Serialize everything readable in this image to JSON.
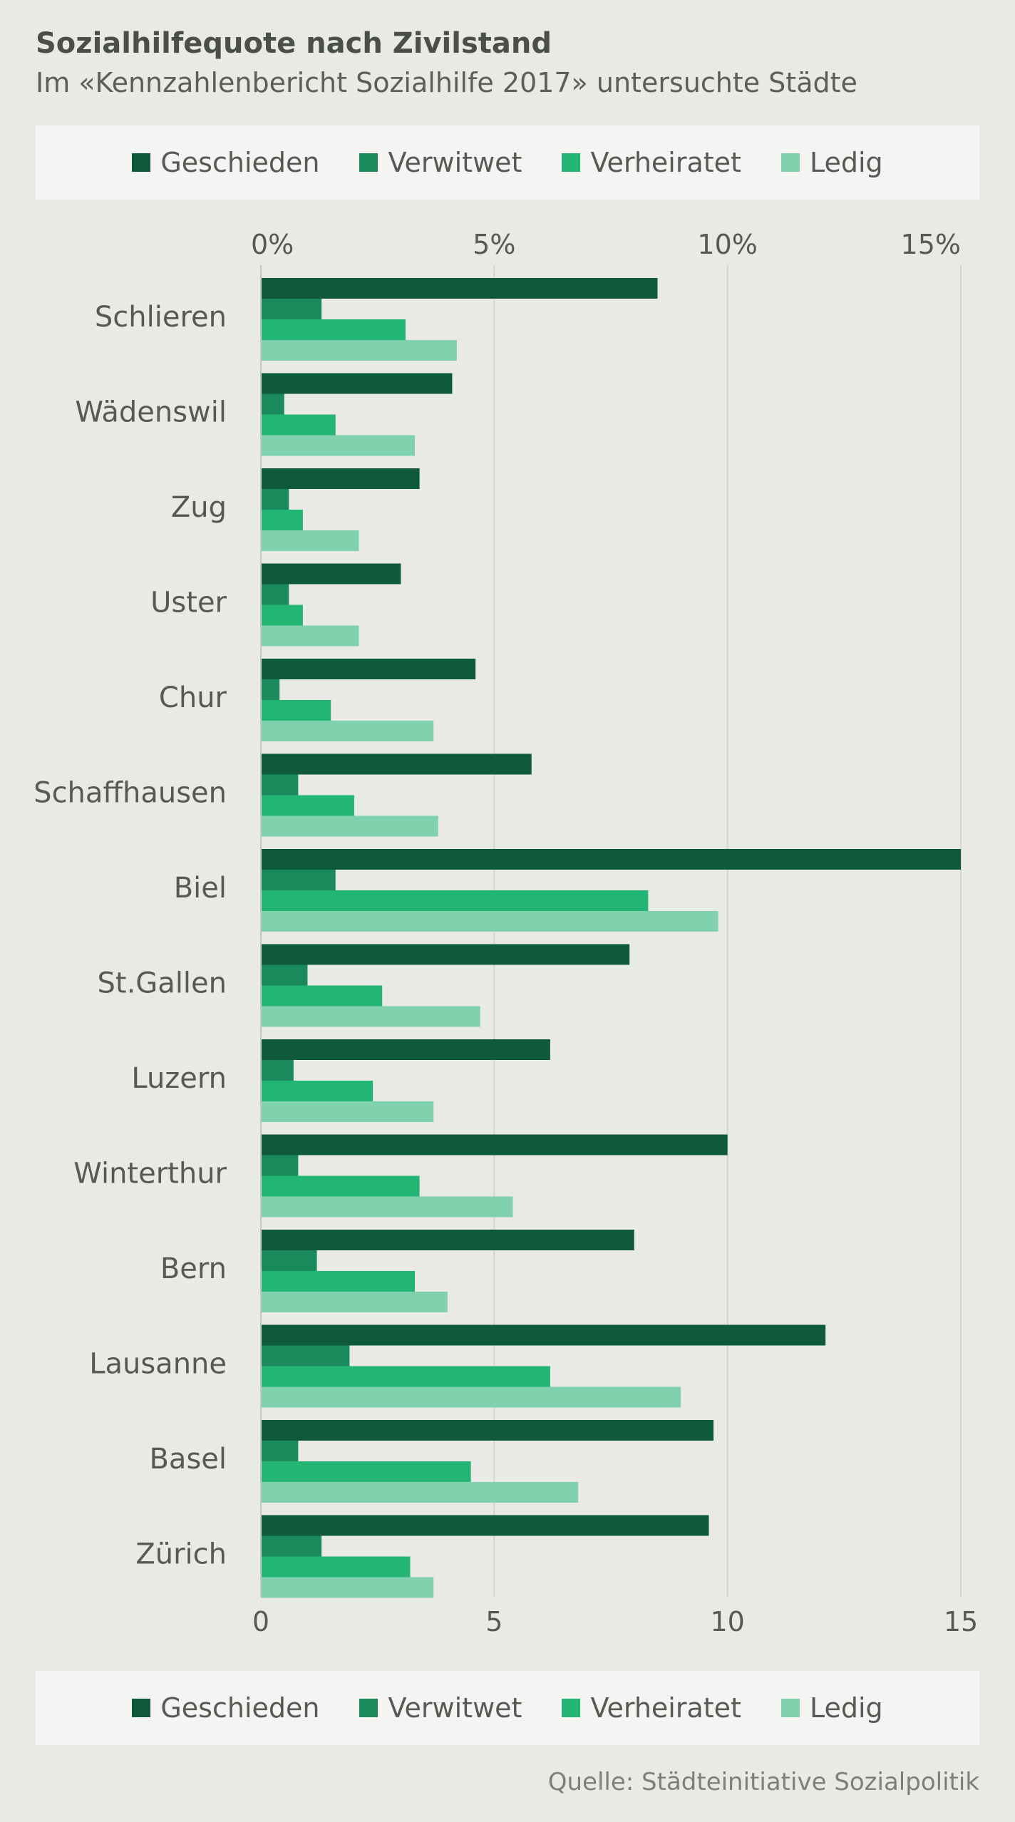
{
  "title": "Sozialhilfequote nach Zivilstand",
  "subtitle": "Im «Kennzahlenbericht Sozialhilfe 2017» untersuchte Städte",
  "source": "Quelle: Städteinitiative Sozialpolitik",
  "legend": [
    {
      "label": "Geschieden",
      "color": "#0f5a3c"
    },
    {
      "label": "Verwitwet",
      "color": "#1a8a5c"
    },
    {
      "label": "Verheiratet",
      "color": "#22b574"
    },
    {
      "label": "Ledig",
      "color": "#80d1ae"
    }
  ],
  "chart_data": {
    "type": "bar",
    "orientation": "horizontal",
    "xlim": [
      0,
      15
    ],
    "top_ticks": [
      "0%",
      "5%",
      "10%",
      "15%"
    ],
    "bottom_ticks": [
      "0",
      "5",
      "10",
      "15"
    ],
    "tick_values": [
      0,
      5,
      10,
      15
    ],
    "grid": true,
    "legend_position": "top and bottom",
    "categories": [
      "Schlieren",
      "Wädenswil",
      "Zug",
      "Uster",
      "Chur",
      "Schaffhausen",
      "Biel",
      "St.Gallen",
      "Luzern",
      "Winterthur",
      "Bern",
      "Lausanne",
      "Basel",
      "Zürich"
    ],
    "series": [
      {
        "name": "Geschieden",
        "color": "#0f5a3c",
        "values": [
          8.5,
          4.1,
          3.4,
          3.0,
          4.6,
          5.8,
          15.0,
          7.9,
          6.2,
          10.0,
          8.0,
          12.1,
          9.7,
          9.6
        ]
      },
      {
        "name": "Verwitwet",
        "color": "#1a8a5c",
        "values": [
          1.3,
          0.5,
          0.6,
          0.6,
          0.4,
          0.8,
          1.6,
          1.0,
          0.7,
          0.8,
          1.2,
          1.9,
          0.8,
          1.3
        ]
      },
      {
        "name": "Verheiratet",
        "color": "#22b574",
        "values": [
          3.1,
          1.6,
          0.9,
          0.9,
          1.5,
          2.0,
          8.3,
          2.6,
          2.4,
          3.4,
          3.3,
          6.2,
          4.5,
          3.2
        ]
      },
      {
        "name": "Ledig",
        "color": "#80d1ae",
        "values": [
          4.2,
          3.3,
          2.1,
          2.1,
          3.7,
          3.8,
          9.8,
          4.7,
          3.7,
          5.4,
          4.0,
          9.0,
          6.8,
          3.7
        ]
      }
    ]
  }
}
